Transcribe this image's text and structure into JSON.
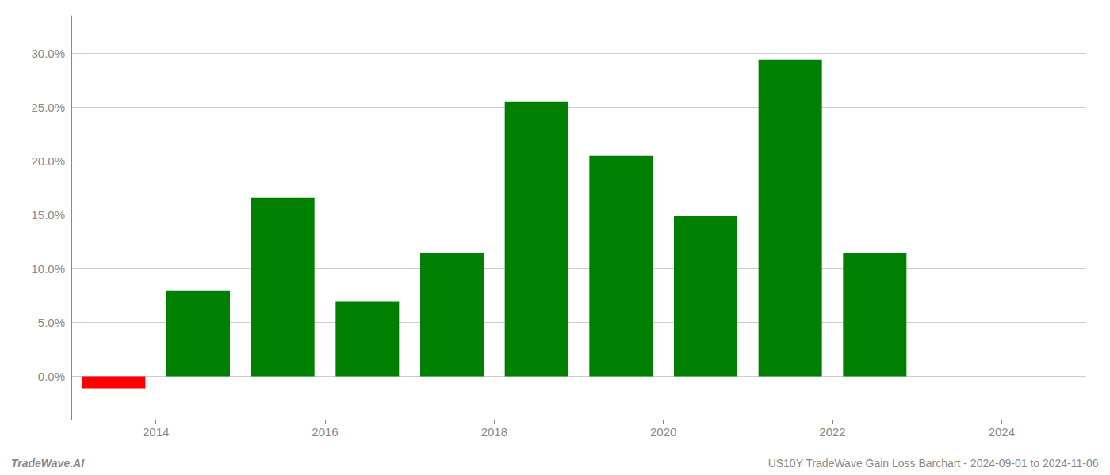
{
  "chart_data": {
    "type": "bar",
    "x": [
      2013.5,
      2014.5,
      2015.5,
      2016.5,
      2017.5,
      2018.5,
      2019.5,
      2020.5,
      2021.5,
      2022.5
    ],
    "values": [
      -0.011,
      0.08,
      0.166,
      0.07,
      0.115,
      0.255,
      0.205,
      0.149,
      0.294,
      0.115
    ],
    "colors": [
      "#ff0000",
      "#008000",
      "#008000",
      "#008000",
      "#008000",
      "#008000",
      "#008000",
      "#008000",
      "#008000",
      "#008000"
    ],
    "xlim": [
      2013.0,
      2025.0
    ],
    "xticks": [
      2014,
      2016,
      2018,
      2020,
      2022,
      2024
    ],
    "ylim": [
      -0.04,
      0.335
    ],
    "yticks": [
      {
        "value": 0.0,
        "label": "0.0%"
      },
      {
        "value": 0.05,
        "label": "5.0%"
      },
      {
        "value": 0.1,
        "label": "10.0%"
      },
      {
        "value": 0.15,
        "label": "15.0%"
      },
      {
        "value": 0.2,
        "label": "20.0%"
      },
      {
        "value": 0.25,
        "label": "25.0%"
      },
      {
        "value": 0.3,
        "label": "30.0%"
      }
    ],
    "grid": true,
    "annotations": [
      "TradeWave.AI",
      "US10Y TradeWave Gain Loss Barchart - 2024-09-01 to 2024-11-06"
    ]
  }
}
